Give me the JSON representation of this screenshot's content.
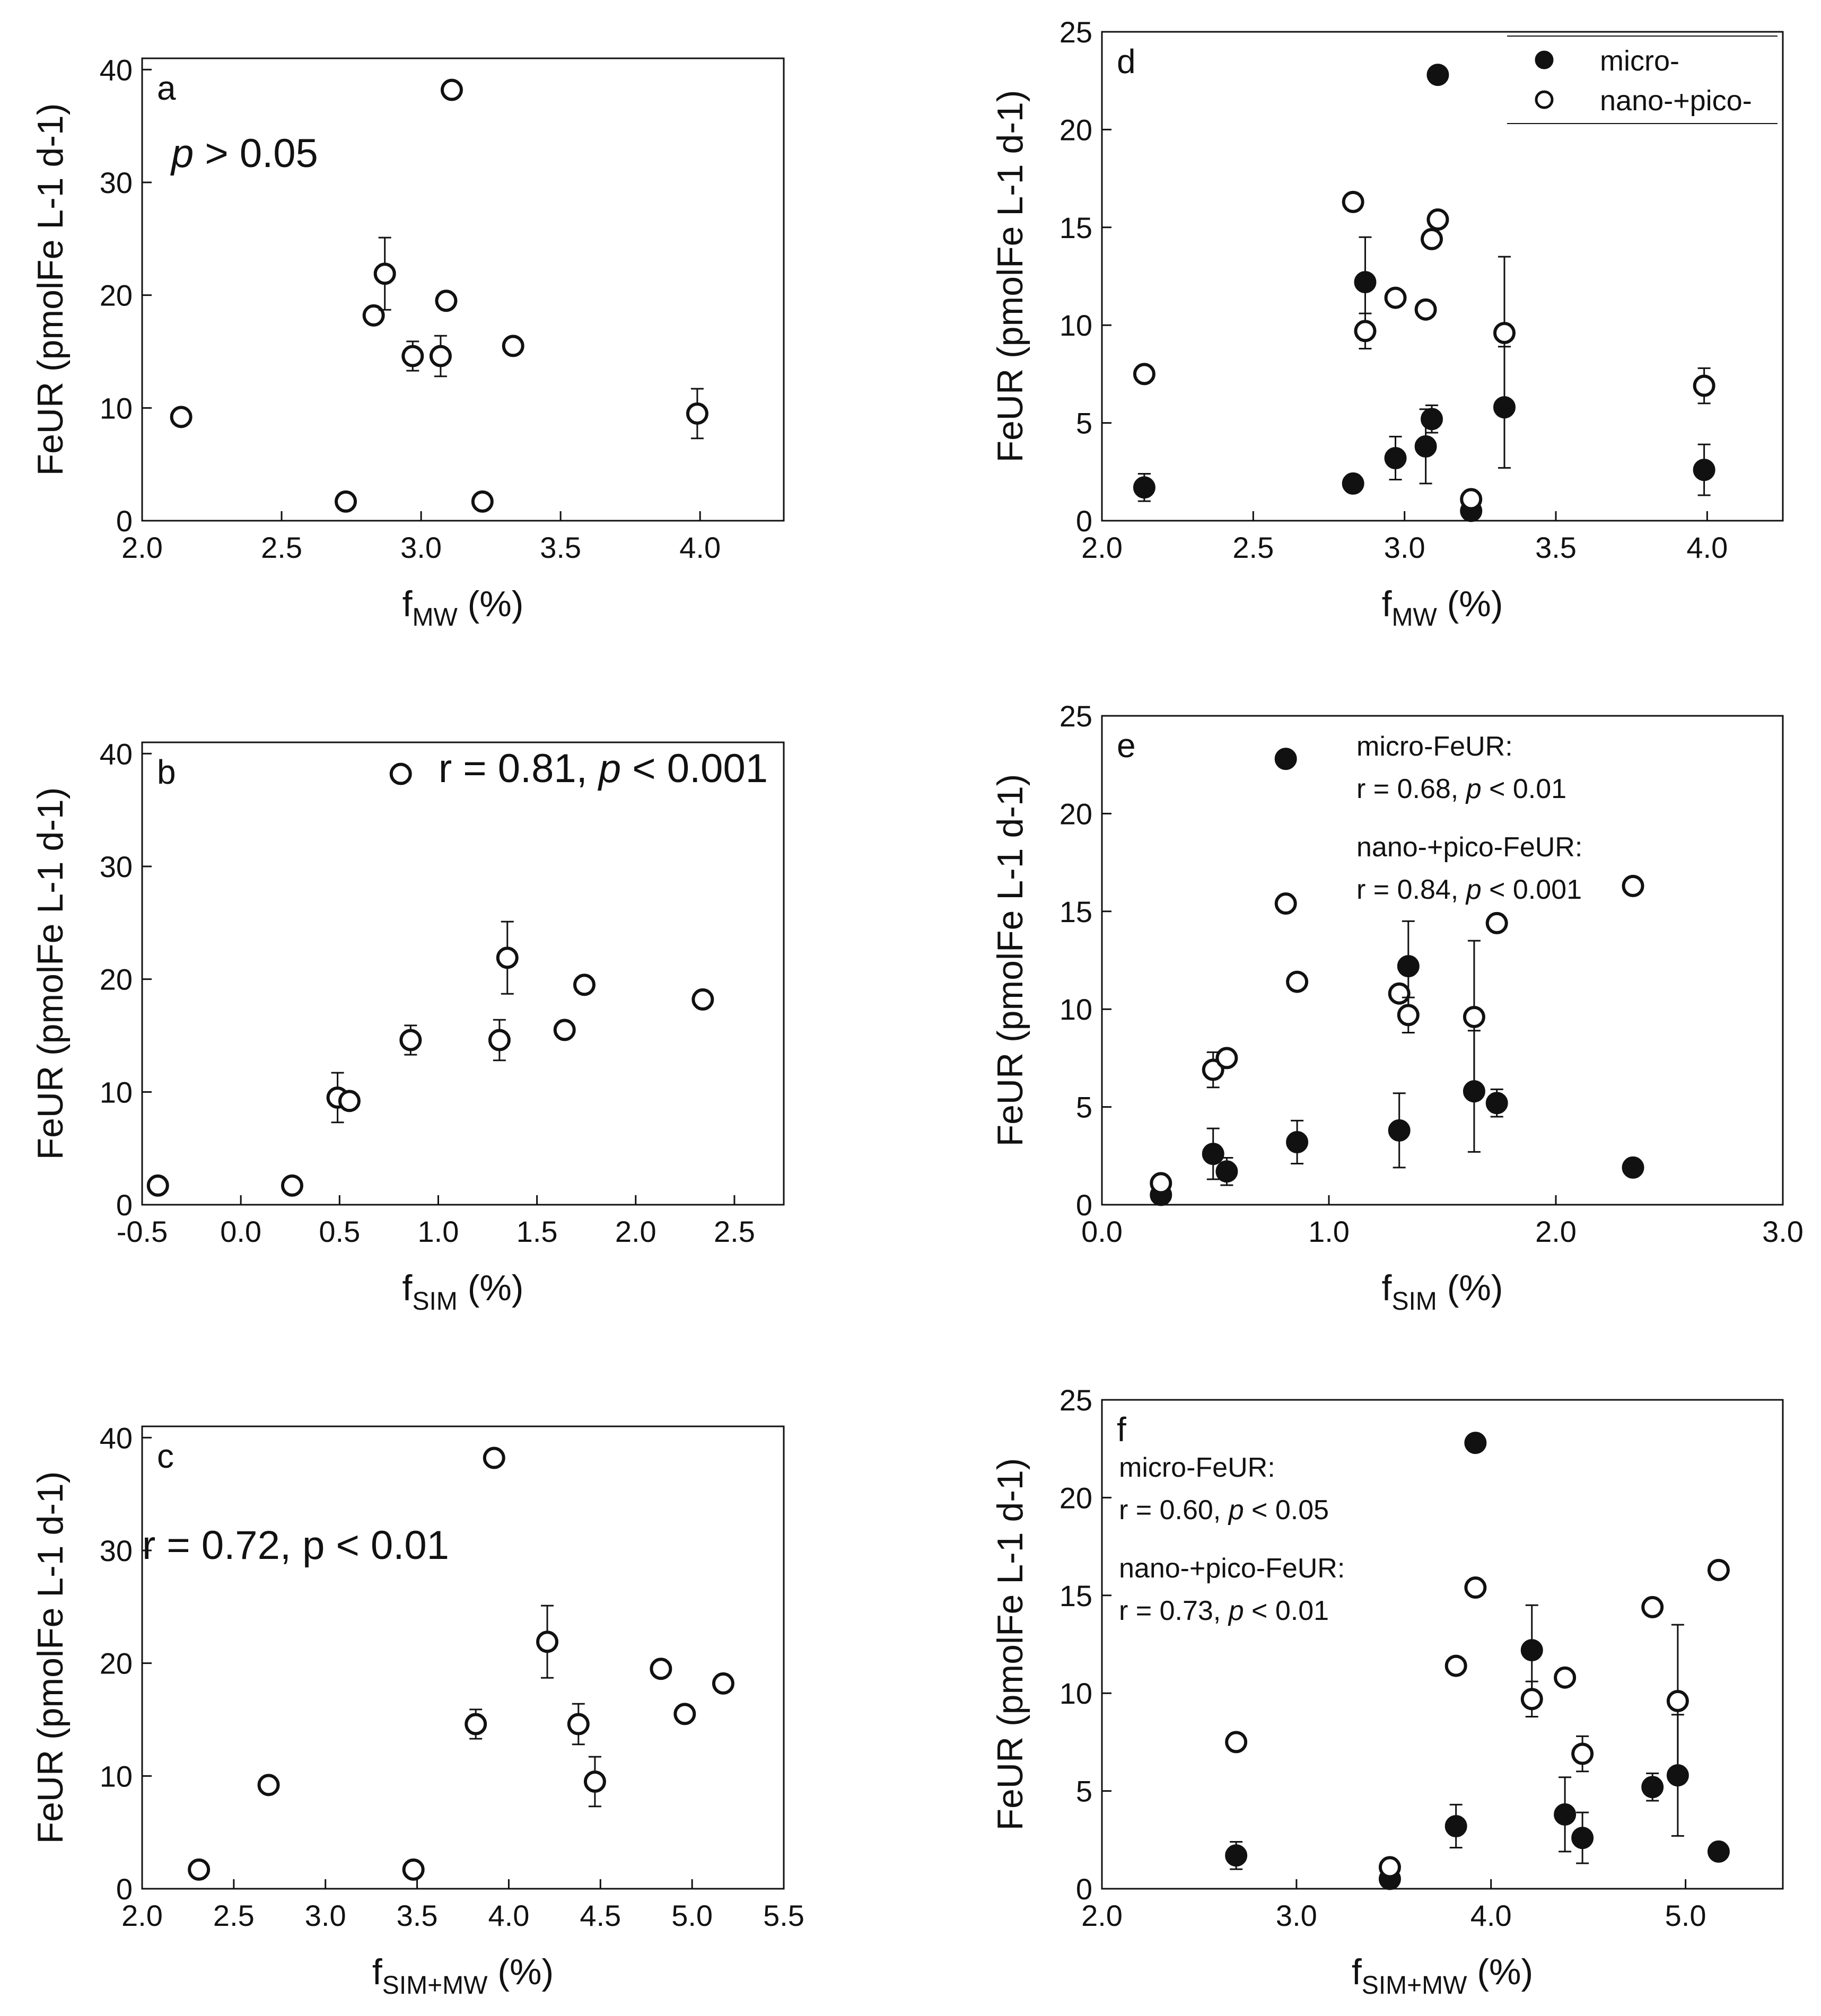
{
  "chart_data": [
    {
      "panel": "a",
      "type": "scatter",
      "xlabel": {
        "main": "f",
        "sub": "MW",
        "unit": " (%)"
      },
      "ylabel": "FeUR (pmolFe L-1 d-1)",
      "xlim": [
        2.0,
        4.3
      ],
      "ylim": [
        0,
        41
      ],
      "xticks": [
        "2.0",
        "2.5",
        "3.0",
        "3.5",
        "4.0"
      ],
      "yticks": [
        "0",
        "10",
        "20",
        "30",
        "40"
      ],
      "annotation": {
        "p_italic": "p",
        "rest": " > 0.05"
      },
      "series": [
        {
          "name": "FeUR",
          "marker": "open",
          "points": [
            {
              "x": 2.14,
              "y": 9.2,
              "err": 0
            },
            {
              "x": 2.73,
              "y": 1.7,
              "err": 0
            },
            {
              "x": 2.83,
              "y": 18.2,
              "err": 0
            },
            {
              "x": 2.87,
              "y": 21.9,
              "err": 3.2
            },
            {
              "x": 2.97,
              "y": 14.6,
              "err": 1.3
            },
            {
              "x": 3.07,
              "y": 14.6,
              "err": 1.8
            },
            {
              "x": 3.09,
              "y": 19.5,
              "err": 0.6
            },
            {
              "x": 3.11,
              "y": 38.2,
              "err": 0
            },
            {
              "x": 3.22,
              "y": 1.7,
              "err": 0
            },
            {
              "x": 3.33,
              "y": 15.5,
              "err": 0
            },
            {
              "x": 3.99,
              "y": 9.5,
              "err": 2.2
            }
          ]
        }
      ]
    },
    {
      "panel": "b",
      "type": "scatter",
      "xlabel": {
        "main": "f",
        "sub": "SIM",
        "unit": " (%)"
      },
      "ylabel": "FeUR (pmolFe L-1 d-1)",
      "xlim": [
        -0.5,
        2.75
      ],
      "ylim": [
        0,
        41
      ],
      "xticks": [
        "-0.5",
        "0.0",
        "0.5",
        "1.0",
        "1.5",
        "2.0",
        "2.5"
      ],
      "yticks": [
        "0",
        "10",
        "20",
        "30",
        "40"
      ],
      "annotation": {
        "text1": "r = 0.81, ",
        "p_italic": "p",
        "rest": " < 0.001"
      },
      "series": [
        {
          "name": "FeUR",
          "marker": "open",
          "points": [
            {
              "x": -0.42,
              "y": 1.7,
              "err": 0
            },
            {
              "x": 0.26,
              "y": 1.7,
              "err": 0
            },
            {
              "x": 0.49,
              "y": 9.5,
              "err": 2.2
            },
            {
              "x": 0.55,
              "y": 9.2,
              "err": 0
            },
            {
              "x": 0.81,
              "y": 38.2,
              "err": 0
            },
            {
              "x": 0.86,
              "y": 14.6,
              "err": 1.3
            },
            {
              "x": 1.31,
              "y": 14.6,
              "err": 1.8
            },
            {
              "x": 1.35,
              "y": 21.9,
              "err": 3.2
            },
            {
              "x": 1.64,
              "y": 15.5,
              "err": 0
            },
            {
              "x": 1.74,
              "y": 19.5,
              "err": 0.6
            },
            {
              "x": 2.34,
              "y": 18.2,
              "err": 0
            }
          ]
        }
      ]
    },
    {
      "panel": "c",
      "type": "scatter",
      "xlabel": {
        "main": "f",
        "sub": "SIM+MW",
        "unit": " (%)"
      },
      "ylabel": "FeUR (pmolFe L-1 d-1)",
      "xlim": [
        2.0,
        5.5
      ],
      "ylim": [
        0,
        41
      ],
      "xticks": [
        "2.0",
        "2.5",
        "3.0",
        "3.5",
        "4.0",
        "4.5",
        "5.0",
        "5.5"
      ],
      "yticks": [
        "0",
        "10",
        "20",
        "30",
        "40"
      ],
      "annotation": {
        "text1": "r = 0.72, p < 0.01"
      },
      "series": [
        {
          "name": "FeUR",
          "marker": "open",
          "points": [
            {
              "x": 2.31,
              "y": 1.7,
              "err": 0
            },
            {
              "x": 2.69,
              "y": 9.2,
              "err": 0
            },
            {
              "x": 3.48,
              "y": 1.7,
              "err": 0
            },
            {
              "x": 3.82,
              "y": 14.6,
              "err": 1.3
            },
            {
              "x": 3.92,
              "y": 38.2,
              "err": 0
            },
            {
              "x": 4.21,
              "y": 21.9,
              "err": 3.2
            },
            {
              "x": 4.38,
              "y": 14.6,
              "err": 1.8
            },
            {
              "x": 4.47,
              "y": 9.5,
              "err": 2.2
            },
            {
              "x": 4.83,
              "y": 19.5,
              "err": 0.6
            },
            {
              "x": 4.96,
              "y": 15.5,
              "err": 0
            },
            {
              "x": 5.17,
              "y": 18.2,
              "err": 0
            }
          ]
        }
      ]
    },
    {
      "panel": "d",
      "type": "scatter",
      "xlabel": {
        "main": "f",
        "sub": "MW",
        "unit": " (%)"
      },
      "ylabel": "FeUR (pmolFe L-1 d-1)",
      "xlim": [
        2.0,
        4.25
      ],
      "ylim": [
        0,
        25
      ],
      "xticks": [
        "2.0",
        "2.5",
        "3.0",
        "3.5",
        "4.0"
      ],
      "yticks": [
        "0",
        "5",
        "10",
        "15",
        "20",
        "25"
      ],
      "legend": {
        "position": "top-right",
        "entries": [
          "micro-",
          "nano-+pico-"
        ]
      },
      "series": [
        {
          "name": "micro-",
          "marker": "filled",
          "points": [
            {
              "x": 2.14,
              "y": 1.7,
              "err": 0.7
            },
            {
              "x": 2.83,
              "y": 1.9,
              "err": 0
            },
            {
              "x": 2.87,
              "y": 12.2,
              "err": 2.3
            },
            {
              "x": 2.97,
              "y": 3.2,
              "err": 1.1
            },
            {
              "x": 3.07,
              "y": 3.8,
              "err": 1.9
            },
            {
              "x": 3.09,
              "y": 5.2,
              "err": 0.7
            },
            {
              "x": 3.11,
              "y": 22.8,
              "err": 0
            },
            {
              "x": 3.22,
              "y": 0.5,
              "err": 0
            },
            {
              "x": 3.33,
              "y": 5.8,
              "err": 3.1
            },
            {
              "x": 3.99,
              "y": 2.6,
              "err": 1.3
            }
          ]
        },
        {
          "name": "nano-+pico-",
          "marker": "open",
          "points": [
            {
              "x": 2.14,
              "y": 7.5,
              "err": 0
            },
            {
              "x": 2.83,
              "y": 16.3,
              "err": 0
            },
            {
              "x": 2.87,
              "y": 9.7,
              "err": 0.9
            },
            {
              "x": 2.97,
              "y": 11.4,
              "err": 0
            },
            {
              "x": 3.07,
              "y": 10.8,
              "err": 0
            },
            {
              "x": 3.09,
              "y": 14.4,
              "err": 0
            },
            {
              "x": 3.11,
              "y": 15.4,
              "err": 0
            },
            {
              "x": 3.22,
              "y": 1.1,
              "err": 0
            },
            {
              "x": 3.33,
              "y": 9.6,
              "err": 3.9
            },
            {
              "x": 3.99,
              "y": 6.9,
              "err": 0.9
            }
          ]
        }
      ]
    },
    {
      "panel": "e",
      "type": "scatter",
      "xlabel": {
        "main": "f",
        "sub": "SIM",
        "unit": " (%)"
      },
      "ylabel": "FeUR (pmolFe L-1 d-1)",
      "xlim": [
        0.0,
        3.0
      ],
      "ylim": [
        0,
        25
      ],
      "xticks": [
        "0.0",
        "1.0",
        "2.0",
        "3.0"
      ],
      "yticks": [
        "0",
        "5",
        "10",
        "15",
        "20",
        "25"
      ],
      "annotation_lines": [
        {
          "text": "micro-FeUR:"
        },
        {
          "pre": "r = 0.68, ",
          "p_italic": "p",
          "rest": " < 0.01"
        },
        {
          "text": "nano-+pico-FeUR:"
        },
        {
          "pre": "r = 0.84, ",
          "p_italic": "p",
          "rest": " < 0.001"
        }
      ],
      "series": [
        {
          "name": "micro-",
          "marker": "filled",
          "points": [
            {
              "x": 0.26,
              "y": 0.5,
              "err": 0
            },
            {
              "x": 0.49,
              "y": 2.6,
              "err": 1.3
            },
            {
              "x": 0.55,
              "y": 1.7,
              "err": 0.7
            },
            {
              "x": 0.81,
              "y": 22.8,
              "err": 0
            },
            {
              "x": 0.86,
              "y": 3.2,
              "err": 1.1
            },
            {
              "x": 1.31,
              "y": 3.8,
              "err": 1.9
            },
            {
              "x": 1.35,
              "y": 12.2,
              "err": 2.3
            },
            {
              "x": 1.64,
              "y": 5.8,
              "err": 3.1
            },
            {
              "x": 1.74,
              "y": 5.2,
              "err": 0.7
            },
            {
              "x": 2.34,
              "y": 1.9,
              "err": 0
            }
          ]
        },
        {
          "name": "nano-+pico-",
          "marker": "open",
          "points": [
            {
              "x": 0.26,
              "y": 1.1,
              "err": 0
            },
            {
              "x": 0.49,
              "y": 6.9,
              "err": 0.9
            },
            {
              "x": 0.55,
              "y": 7.5,
              "err": 0
            },
            {
              "x": 0.81,
              "y": 15.4,
              "err": 0
            },
            {
              "x": 0.86,
              "y": 11.4,
              "err": 0
            },
            {
              "x": 1.31,
              "y": 10.8,
              "err": 0
            },
            {
              "x": 1.35,
              "y": 9.7,
              "err": 0.9
            },
            {
              "x": 1.64,
              "y": 9.6,
              "err": 3.9
            },
            {
              "x": 1.74,
              "y": 14.4,
              "err": 0
            },
            {
              "x": 2.34,
              "y": 16.3,
              "err": 0
            }
          ]
        }
      ]
    },
    {
      "panel": "f",
      "type": "scatter",
      "xlabel": {
        "main": "f",
        "sub": "SIM+MW",
        "unit": " (%)"
      },
      "ylabel": "FeUR (pmolFe L-1 d-1)",
      "xlim": [
        2.0,
        5.5
      ],
      "ylim": [
        0,
        25
      ],
      "xticks": [
        "2.0",
        "3.0",
        "4.0",
        "5.0"
      ],
      "yticks": [
        "0",
        "5",
        "10",
        "15",
        "20",
        "25"
      ],
      "annotation_lines": [
        {
          "text": "micro-FeUR:"
        },
        {
          "pre": "r = 0.60, ",
          "p_italic": "p",
          "rest": " < 0.05"
        },
        {
          "text": "nano-+pico-FeUR:"
        },
        {
          "pre": "r = 0.73, ",
          "p_italic": "p",
          "rest": " < 0.01"
        }
      ],
      "series": [
        {
          "name": "micro-",
          "marker": "filled",
          "points": [
            {
              "x": 2.69,
              "y": 1.7,
              "err": 0.7
            },
            {
              "x": 3.48,
              "y": 0.5,
              "err": 0
            },
            {
              "x": 3.82,
              "y": 3.2,
              "err": 1.1
            },
            {
              "x": 3.92,
              "y": 22.8,
              "err": 0
            },
            {
              "x": 4.21,
              "y": 12.2,
              "err": 2.3
            },
            {
              "x": 4.38,
              "y": 3.8,
              "err": 1.9
            },
            {
              "x": 4.47,
              "y": 2.6,
              "err": 1.3
            },
            {
              "x": 4.83,
              "y": 5.2,
              "err": 0.7
            },
            {
              "x": 4.96,
              "y": 5.8,
              "err": 3.1
            },
            {
              "x": 5.17,
              "y": 1.9,
              "err": 0
            }
          ]
        },
        {
          "name": "nano-+pico-",
          "marker": "open",
          "points": [
            {
              "x": 2.69,
              "y": 7.5,
              "err": 0
            },
            {
              "x": 3.48,
              "y": 1.1,
              "err": 0
            },
            {
              "x": 3.82,
              "y": 11.4,
              "err": 0
            },
            {
              "x": 3.92,
              "y": 15.4,
              "err": 0
            },
            {
              "x": 4.21,
              "y": 9.7,
              "err": 0.9
            },
            {
              "x": 4.38,
              "y": 10.8,
              "err": 0
            },
            {
              "x": 4.47,
              "y": 6.9,
              "err": 0.9
            },
            {
              "x": 4.83,
              "y": 14.4,
              "err": 0
            },
            {
              "x": 4.96,
              "y": 9.6,
              "err": 3.9
            },
            {
              "x": 5.17,
              "y": 16.3,
              "err": 0
            }
          ]
        }
      ]
    }
  ]
}
